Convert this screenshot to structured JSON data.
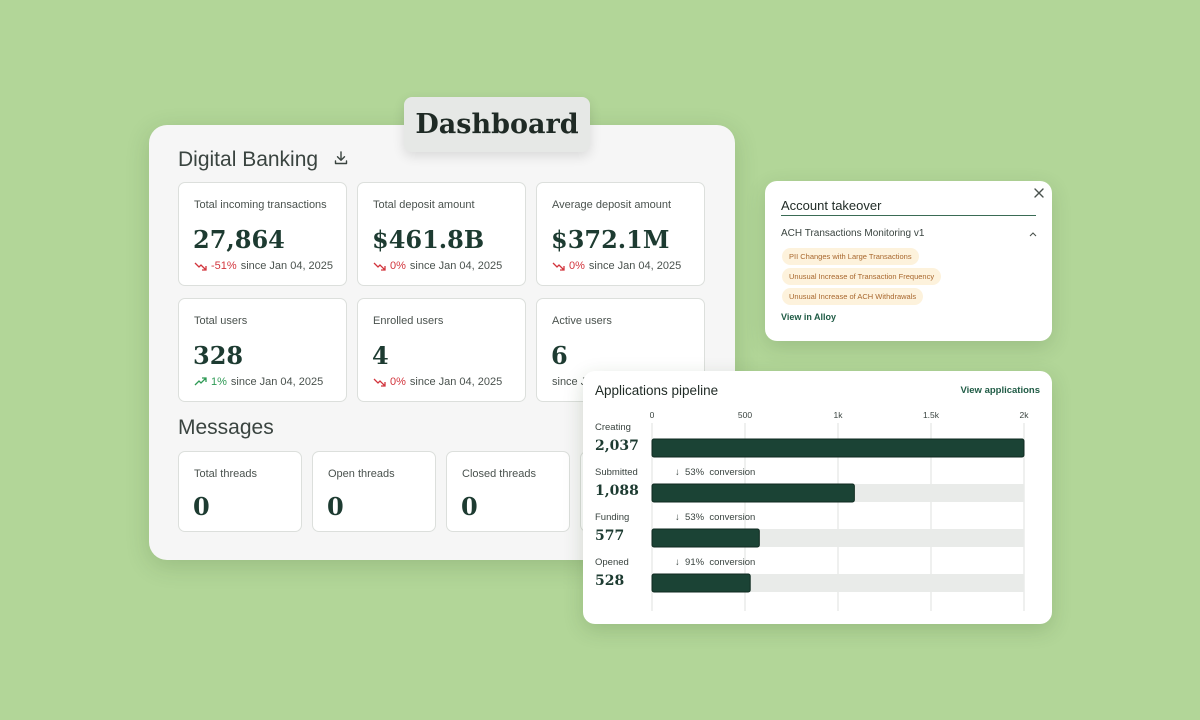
{
  "dashboard": {
    "tab_label": "Dashboard",
    "banking_title": "Digital Banking",
    "download_icon": "download-icon",
    "stats": [
      {
        "label": "Total incoming transactions",
        "value": "27,864",
        "change": "-51%",
        "since": "since Jan 04, 2025",
        "trend": "down"
      },
      {
        "label": "Total deposit amount",
        "value": "$461.8B",
        "change": "0%",
        "since": "since Jan 04, 2025",
        "trend": "down"
      },
      {
        "label": "Average deposit amount",
        "value": "$372.1M",
        "change": "0%",
        "since": "since Jan 04, 2025",
        "trend": "down"
      },
      {
        "label": "Total users",
        "value": "328",
        "change": "1%",
        "since": "since Jan 04, 2025",
        "trend": "up"
      },
      {
        "label": "Enrolled users",
        "value": "4",
        "change": "0%",
        "since": "since Jan 04, 2025",
        "trend": "down"
      },
      {
        "label": "Active users",
        "value": "6",
        "change": "",
        "since": "since Ja",
        "trend": "none"
      }
    ],
    "messages_title": "Messages",
    "messages": [
      {
        "label": "Total threads",
        "value": "0"
      },
      {
        "label": "Open threads",
        "value": "0"
      },
      {
        "label": "Closed threads",
        "value": "0"
      }
    ],
    "colors": {
      "positive": "#2e9a55",
      "negative": "#d2343c",
      "accent": "#1d3b31"
    }
  },
  "account_takeover": {
    "title": "Account takeover",
    "rule": "ACH Transactions Monitoring v1",
    "tags": [
      "PII Changes with Large Transactions",
      "Unusual Increase of Transaction Frequency",
      "Unusual Increase of ACH Withdrawals"
    ],
    "link": "View in Alloy",
    "close_icon": "close-icon"
  },
  "pipeline": {
    "title": "Applications pipeline",
    "link": "View applications",
    "conversion_word": "conversion",
    "stages": [
      {
        "name": "Creating",
        "value": "2,037",
        "conversion": ""
      },
      {
        "name": "Submitted",
        "value": "1,088",
        "conversion": "53%"
      },
      {
        "name": "Funding",
        "value": "577",
        "conversion": "53%"
      },
      {
        "name": "Opened",
        "value": "528",
        "conversion": "91%"
      }
    ]
  },
  "chart_data": {
    "type": "bar",
    "orientation": "horizontal",
    "categories": [
      "Creating",
      "Submitted",
      "Funding",
      "Opened"
    ],
    "values": [
      2037,
      1088,
      577,
      528
    ],
    "xlim": [
      0,
      2000
    ],
    "ticks": [
      "0",
      "500",
      "1k",
      "1.5k",
      "2k"
    ],
    "tick_values": [
      0,
      500,
      1000,
      1500,
      2000
    ],
    "grid": true,
    "bar_color": "#1b4335",
    "track_color": "#e9ebe9"
  }
}
